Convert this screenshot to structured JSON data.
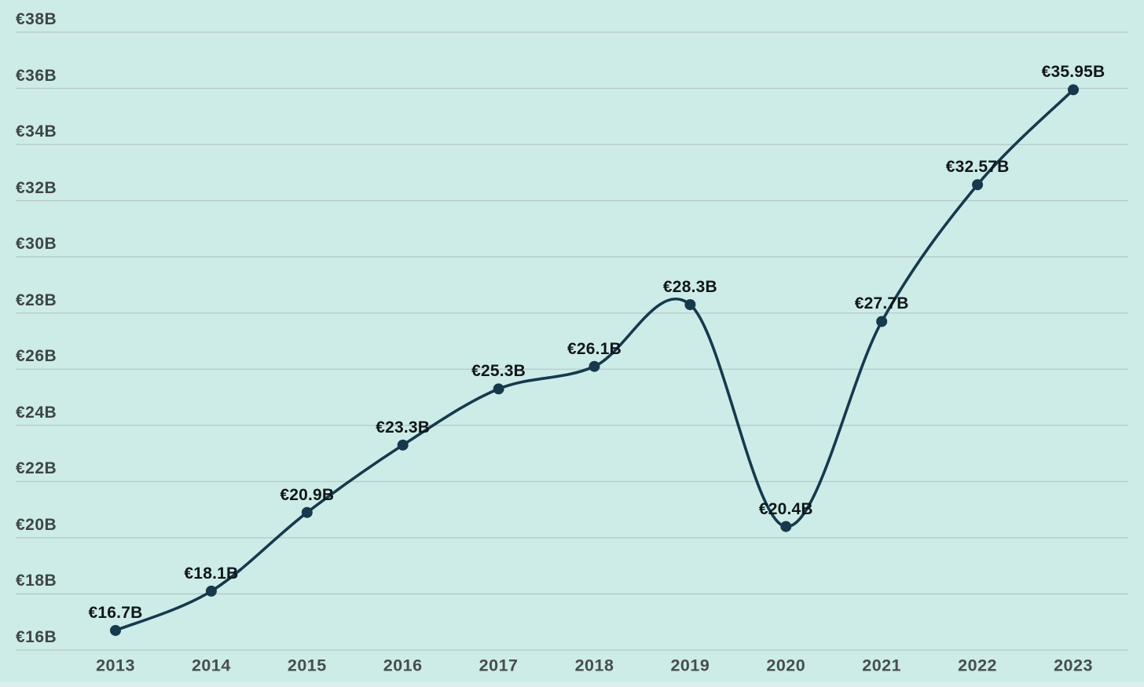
{
  "chart_data": {
    "type": "line",
    "title": "",
    "xlabel": "",
    "ylabel": "",
    "categories": [
      "2013",
      "2014",
      "2015",
      "2016",
      "2017",
      "2018",
      "2019",
      "2020",
      "2021",
      "2022",
      "2023"
    ],
    "values": [
      16.7,
      18.1,
      20.9,
      23.3,
      25.3,
      26.1,
      28.3,
      20.4,
      27.7,
      32.57,
      35.95
    ],
    "point_labels": [
      "€16.7B",
      "€18.1B",
      "€20.9B",
      "€23.3B",
      "€25.3B",
      "€26.1B",
      "€28.3B",
      "€20.4B",
      "€27.7B",
      "€32.57B",
      "€35.95B"
    ],
    "ylim": [
      16,
      38
    ],
    "ytick_step": 2,
    "ytick_labels": [
      "€16B",
      "€18B",
      "€20B",
      "€22B",
      "€24B",
      "€26B",
      "€28B",
      "€30B",
      "€32B",
      "€34B",
      "€36B",
      "€38B"
    ],
    "grid": true,
    "legend": null,
    "line_style": "smooth",
    "colors": {
      "background": "#cdece8",
      "line": "#16394d",
      "point": "#16394d",
      "gridline": "#b7c8c5",
      "data_label": "#10161a",
      "y_tick_label": "#3f4546",
      "x_tick_label": "#474d4e"
    }
  }
}
